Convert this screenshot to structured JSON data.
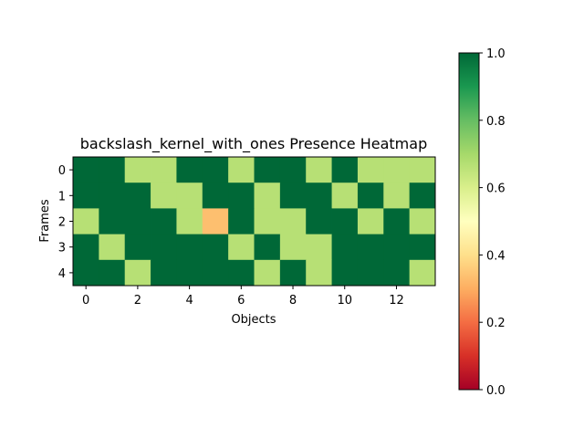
{
  "chart_data": {
    "type": "heatmap",
    "title": "backslash_kernel_with_ones Presence Heatmap",
    "xlabel": "Objects",
    "ylabel": "Frames",
    "rows": 5,
    "cols": 14,
    "x_ticks": [
      0,
      2,
      4,
      6,
      8,
      10,
      12
    ],
    "y_ticks": [
      0,
      1,
      2,
      3,
      4
    ],
    "colormap": "RdYlGn",
    "vmin": 0.0,
    "vmax": 1.0,
    "colorbar_ticks": [
      "0.0",
      "0.2",
      "0.4",
      "0.6",
      "0.8",
      "1.0"
    ],
    "values": [
      [
        1,
        1,
        0.667,
        0.667,
        1,
        1,
        0.667,
        1,
        1,
        0.667,
        1,
        0.667,
        0.667,
        0.667
      ],
      [
        1,
        1,
        1,
        0.667,
        0.667,
        1,
        1,
        0.667,
        1,
        1,
        0.667,
        1,
        0.667,
        1
      ],
      [
        0.667,
        1,
        1,
        1,
        0.667,
        0.333,
        1,
        0.667,
        0.667,
        1,
        1,
        0.667,
        1,
        0.667
      ],
      [
        1,
        0.667,
        1,
        1,
        1,
        1,
        0.667,
        1,
        0.667,
        0.667,
        1,
        1,
        1,
        1
      ],
      [
        1,
        1,
        0.667,
        1,
        1,
        1,
        1,
        0.667,
        1,
        0.667,
        1,
        1,
        1,
        0.667
      ]
    ]
  }
}
